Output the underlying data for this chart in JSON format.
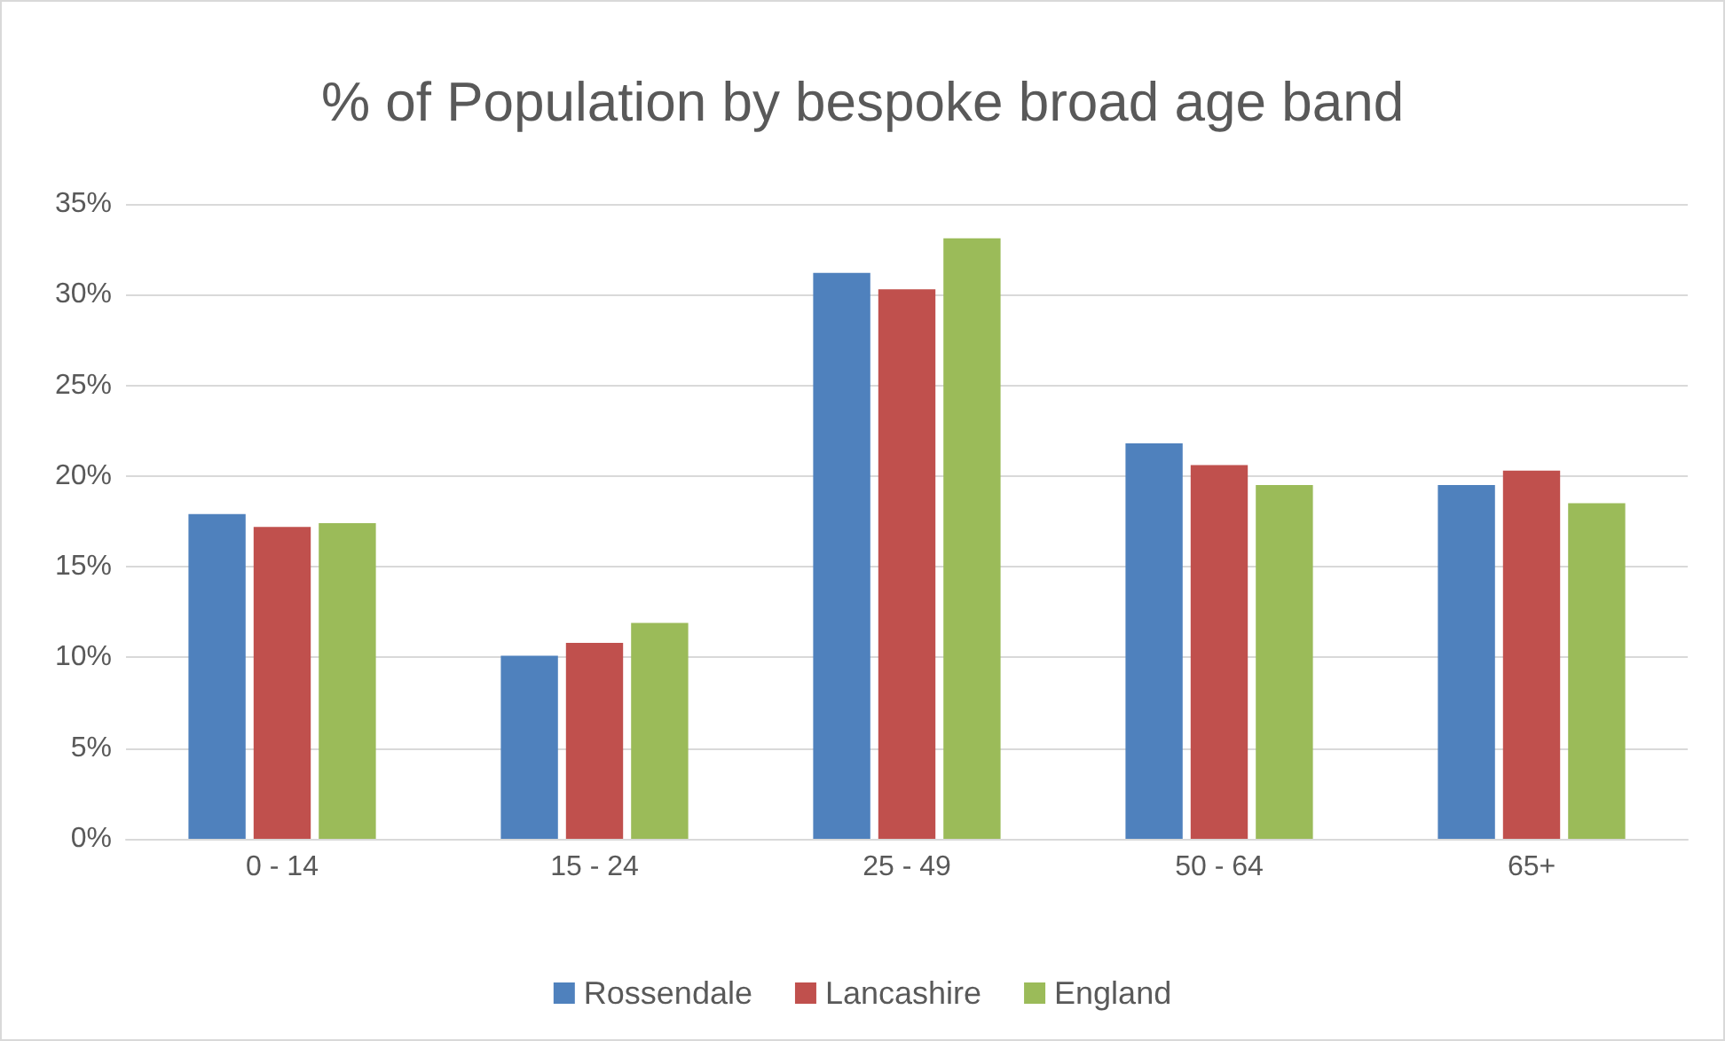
{
  "chart_data": {
    "type": "bar",
    "title": "% of Population by bespoke broad age band",
    "categories": [
      "0 - 14",
      "15 - 24",
      "25 - 49",
      "50 - 64",
      "65+"
    ],
    "series": [
      {
        "name": "Rossendale",
        "color": "#4f81bd",
        "values": [
          17.9,
          10.1,
          31.2,
          21.8,
          19.5
        ]
      },
      {
        "name": "Lancashire",
        "color": "#c0504d",
        "values": [
          17.2,
          10.8,
          30.3,
          20.6,
          20.3
        ]
      },
      {
        "name": "England",
        "color": "#9bbb59",
        "values": [
          17.4,
          11.9,
          33.1,
          19.5,
          18.5
        ]
      }
    ],
    "ylim": [
      0,
      35
    ],
    "yticks": [
      {
        "value": 0,
        "label": "0%"
      },
      {
        "value": 5,
        "label": "5%"
      },
      {
        "value": 10,
        "label": "10%"
      },
      {
        "value": 15,
        "label": "15%"
      },
      {
        "value": 20,
        "label": "20%"
      },
      {
        "value": 25,
        "label": "25%"
      },
      {
        "value": 30,
        "label": "30%"
      },
      {
        "value": 35,
        "label": "35%"
      }
    ],
    "grid": "y",
    "legend": "bottom"
  }
}
